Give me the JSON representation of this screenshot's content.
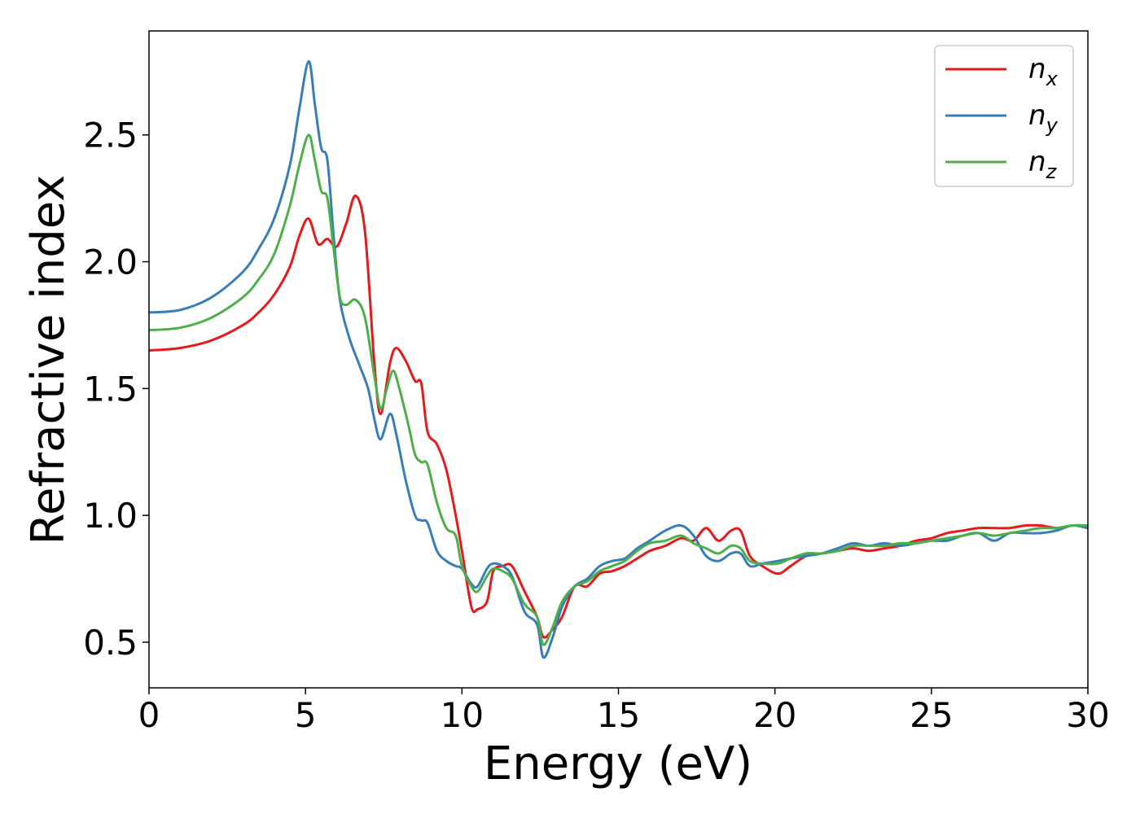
{
  "chart_data": {
    "type": "line",
    "xlabel": "Energy (eV)",
    "ylabel": "Refractive index",
    "xlim": [
      0,
      30
    ],
    "ylim": [
      0.32,
      2.91
    ],
    "x_ticks": [
      0,
      5,
      10,
      15,
      20,
      25,
      30
    ],
    "y_ticks": [
      0.5,
      1.0,
      1.5,
      2.0,
      2.5
    ],
    "x_tick_labels": [
      "0",
      "5",
      "10",
      "15",
      "20",
      "25",
      "30"
    ],
    "y_tick_labels": [
      "0.5",
      "1.0",
      "1.5",
      "2.0",
      "2.5"
    ],
    "grid": false,
    "legend_position": "top-right",
    "series": [
      {
        "name": "n_x",
        "label_base": "n",
        "label_sub": "x",
        "color": "#e41a1c",
        "points": [
          [
            0,
            1.65
          ],
          [
            1,
            1.66
          ],
          [
            2,
            1.69
          ],
          [
            3,
            1.75
          ],
          [
            3.5,
            1.8
          ],
          [
            4,
            1.87
          ],
          [
            4.5,
            1.98
          ],
          [
            4.8,
            2.1
          ],
          [
            5.1,
            2.17
          ],
          [
            5.4,
            2.07
          ],
          [
            5.7,
            2.09
          ],
          [
            6.0,
            2.06
          ],
          [
            6.3,
            2.15
          ],
          [
            6.6,
            2.26
          ],
          [
            6.9,
            2.12
          ],
          [
            7.2,
            1.6
          ],
          [
            7.4,
            1.4
          ],
          [
            7.7,
            1.6
          ],
          [
            7.9,
            1.66
          ],
          [
            8.2,
            1.61
          ],
          [
            8.5,
            1.53
          ],
          [
            8.7,
            1.52
          ],
          [
            8.9,
            1.33
          ],
          [
            9.2,
            1.28
          ],
          [
            9.5,
            1.18
          ],
          [
            9.8,
            1.0
          ],
          [
            10.0,
            0.86
          ],
          [
            10.3,
            0.64
          ],
          [
            10.5,
            0.63
          ],
          [
            10.8,
            0.66
          ],
          [
            11.0,
            0.78
          ],
          [
            11.3,
            0.8
          ],
          [
            11.6,
            0.8
          ],
          [
            12.0,
            0.7
          ],
          [
            12.4,
            0.6
          ],
          [
            12.6,
            0.52
          ],
          [
            12.9,
            0.55
          ],
          [
            13.2,
            0.6
          ],
          [
            13.6,
            0.72
          ],
          [
            14.0,
            0.72
          ],
          [
            14.4,
            0.77
          ],
          [
            14.8,
            0.78
          ],
          [
            15.2,
            0.8
          ],
          [
            15.6,
            0.83
          ],
          [
            16.0,
            0.86
          ],
          [
            16.5,
            0.88
          ],
          [
            17.0,
            0.91
          ],
          [
            17.4,
            0.9
          ],
          [
            17.8,
            0.95
          ],
          [
            18.2,
            0.9
          ],
          [
            18.6,
            0.94
          ],
          [
            18.9,
            0.94
          ],
          [
            19.2,
            0.84
          ],
          [
            19.6,
            0.8
          ],
          [
            20.1,
            0.77
          ],
          [
            20.5,
            0.8
          ],
          [
            21.0,
            0.84
          ],
          [
            21.5,
            0.85
          ],
          [
            22.0,
            0.86
          ],
          [
            22.5,
            0.87
          ],
          [
            23.0,
            0.86
          ],
          [
            23.5,
            0.87
          ],
          [
            24.0,
            0.88
          ],
          [
            24.5,
            0.9
          ],
          [
            25.0,
            0.91
          ],
          [
            25.5,
            0.93
          ],
          [
            26.0,
            0.94
          ],
          [
            26.5,
            0.95
          ],
          [
            27.0,
            0.95
          ],
          [
            27.5,
            0.95
          ],
          [
            28.0,
            0.96
          ],
          [
            28.5,
            0.96
          ],
          [
            29.0,
            0.95
          ],
          [
            29.5,
            0.96
          ],
          [
            30.0,
            0.96
          ]
        ]
      },
      {
        "name": "n_y",
        "label_base": "n",
        "label_sub": "y",
        "color": "#377eb8",
        "points": [
          [
            0,
            1.8
          ],
          [
            1,
            1.81
          ],
          [
            2,
            1.86
          ],
          [
            3,
            1.96
          ],
          [
            3.5,
            2.05
          ],
          [
            4,
            2.17
          ],
          [
            4.5,
            2.38
          ],
          [
            4.8,
            2.6
          ],
          [
            5.1,
            2.79
          ],
          [
            5.3,
            2.62
          ],
          [
            5.5,
            2.45
          ],
          [
            5.7,
            2.4
          ],
          [
            5.9,
            2.1
          ],
          [
            6.1,
            1.85
          ],
          [
            6.4,
            1.7
          ],
          [
            6.7,
            1.6
          ],
          [
            7.0,
            1.5
          ],
          [
            7.2,
            1.38
          ],
          [
            7.4,
            1.3
          ],
          [
            7.7,
            1.4
          ],
          [
            7.9,
            1.32
          ],
          [
            8.2,
            1.14
          ],
          [
            8.5,
            1.0
          ],
          [
            8.7,
            0.98
          ],
          [
            8.9,
            0.97
          ],
          [
            9.2,
            0.86
          ],
          [
            9.5,
            0.82
          ],
          [
            9.8,
            0.8
          ],
          [
            10.0,
            0.79
          ],
          [
            10.3,
            0.73
          ],
          [
            10.5,
            0.72
          ],
          [
            10.8,
            0.79
          ],
          [
            11.0,
            0.81
          ],
          [
            11.3,
            0.8
          ],
          [
            11.6,
            0.76
          ],
          [
            12.0,
            0.62
          ],
          [
            12.4,
            0.57
          ],
          [
            12.6,
            0.44
          ],
          [
            12.9,
            0.52
          ],
          [
            13.2,
            0.64
          ],
          [
            13.6,
            0.72
          ],
          [
            14.0,
            0.75
          ],
          [
            14.4,
            0.8
          ],
          [
            14.8,
            0.82
          ],
          [
            15.2,
            0.83
          ],
          [
            15.6,
            0.87
          ],
          [
            16.0,
            0.9
          ],
          [
            16.5,
            0.94
          ],
          [
            17.0,
            0.96
          ],
          [
            17.4,
            0.92
          ],
          [
            17.8,
            0.84
          ],
          [
            18.2,
            0.82
          ],
          [
            18.6,
            0.85
          ],
          [
            18.9,
            0.85
          ],
          [
            19.2,
            0.8
          ],
          [
            19.6,
            0.81
          ],
          [
            20.1,
            0.82
          ],
          [
            20.5,
            0.83
          ],
          [
            21.0,
            0.84
          ],
          [
            21.5,
            0.85
          ],
          [
            22.0,
            0.87
          ],
          [
            22.5,
            0.89
          ],
          [
            23.0,
            0.88
          ],
          [
            23.5,
            0.89
          ],
          [
            24.0,
            0.88
          ],
          [
            24.5,
            0.89
          ],
          [
            25.0,
            0.9
          ],
          [
            25.5,
            0.9
          ],
          [
            26.0,
            0.92
          ],
          [
            26.5,
            0.93
          ],
          [
            27.0,
            0.9
          ],
          [
            27.5,
            0.93
          ],
          [
            28.0,
            0.93
          ],
          [
            28.5,
            0.93
          ],
          [
            29.0,
            0.94
          ],
          [
            29.5,
            0.96
          ],
          [
            30.0,
            0.95
          ]
        ]
      },
      {
        "name": "n_z",
        "label_base": "n",
        "label_sub": "z",
        "color": "#4daf4a",
        "points": [
          [
            0,
            1.73
          ],
          [
            1,
            1.74
          ],
          [
            2,
            1.78
          ],
          [
            3,
            1.86
          ],
          [
            3.5,
            1.93
          ],
          [
            4,
            2.03
          ],
          [
            4.5,
            2.22
          ],
          [
            4.8,
            2.38
          ],
          [
            5.1,
            2.5
          ],
          [
            5.3,
            2.4
          ],
          [
            5.5,
            2.28
          ],
          [
            5.7,
            2.25
          ],
          [
            5.9,
            2.05
          ],
          [
            6.1,
            1.86
          ],
          [
            6.3,
            1.83
          ],
          [
            6.6,
            1.85
          ],
          [
            6.9,
            1.78
          ],
          [
            7.2,
            1.55
          ],
          [
            7.4,
            1.42
          ],
          [
            7.6,
            1.5
          ],
          [
            7.8,
            1.57
          ],
          [
            8.0,
            1.5
          ],
          [
            8.3,
            1.35
          ],
          [
            8.5,
            1.24
          ],
          [
            8.7,
            1.21
          ],
          [
            8.9,
            1.2
          ],
          [
            9.2,
            1.05
          ],
          [
            9.5,
            0.95
          ],
          [
            9.8,
            0.92
          ],
          [
            10.0,
            0.8
          ],
          [
            10.3,
            0.72
          ],
          [
            10.5,
            0.7
          ],
          [
            10.8,
            0.76
          ],
          [
            11.0,
            0.79
          ],
          [
            11.3,
            0.78
          ],
          [
            11.6,
            0.75
          ],
          [
            12.0,
            0.65
          ],
          [
            12.4,
            0.6
          ],
          [
            12.6,
            0.49
          ],
          [
            12.9,
            0.56
          ],
          [
            13.2,
            0.66
          ],
          [
            13.6,
            0.72
          ],
          [
            14.0,
            0.74
          ],
          [
            14.4,
            0.78
          ],
          [
            14.8,
            0.8
          ],
          [
            15.2,
            0.82
          ],
          [
            15.6,
            0.86
          ],
          [
            16.0,
            0.89
          ],
          [
            16.5,
            0.9
          ],
          [
            17.0,
            0.92
          ],
          [
            17.4,
            0.89
          ],
          [
            17.8,
            0.87
          ],
          [
            18.2,
            0.85
          ],
          [
            18.6,
            0.88
          ],
          [
            18.9,
            0.87
          ],
          [
            19.2,
            0.82
          ],
          [
            19.6,
            0.81
          ],
          [
            20.1,
            0.81
          ],
          [
            20.5,
            0.83
          ],
          [
            21.0,
            0.85
          ],
          [
            21.5,
            0.85
          ],
          [
            22.0,
            0.86
          ],
          [
            22.5,
            0.88
          ],
          [
            23.0,
            0.88
          ],
          [
            23.5,
            0.88
          ],
          [
            24.0,
            0.89
          ],
          [
            24.5,
            0.89
          ],
          [
            25.0,
            0.9
          ],
          [
            25.5,
            0.91
          ],
          [
            26.0,
            0.92
          ],
          [
            26.5,
            0.93
          ],
          [
            27.0,
            0.92
          ],
          [
            27.5,
            0.93
          ],
          [
            28.0,
            0.94
          ],
          [
            28.5,
            0.95
          ],
          [
            29.0,
            0.95
          ],
          [
            29.5,
            0.96
          ],
          [
            30.0,
            0.96
          ]
        ]
      }
    ]
  }
}
